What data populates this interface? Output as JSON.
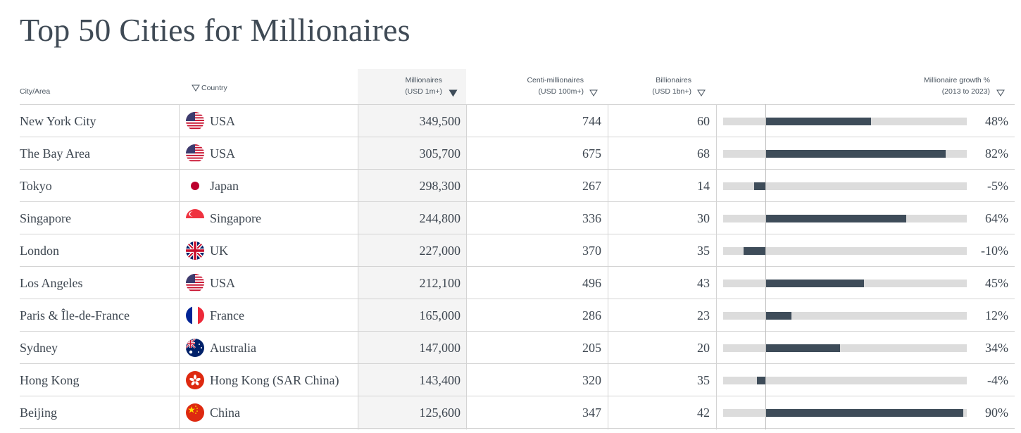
{
  "title": "Top 50 Cities for Millionaires",
  "headers": {
    "city": "City/Area",
    "country": "Country",
    "millionaires_1": "Millionaires",
    "millionaires_2": "(USD 1m+)",
    "centi_1": "Centi-millionaires",
    "centi_2": "(USD 100m+)",
    "billion_1": "Billionaires",
    "billion_2": "(USD 1bn+)",
    "growth_1": "Millionaire growth %",
    "growth_2": "(2013 to 2023)"
  },
  "colors": {
    "bar": "#3e4c59",
    "track": "#dcdcdc",
    "sorted_column_bg": "#f4f4f4"
  },
  "rows": [
    {
      "city": "New York City",
      "flag": "usa-flag-icon",
      "country": "USA",
      "millionaires": "349,500",
      "centi": "744",
      "billionaires": "60",
      "growth": 48,
      "growth_label": "48%"
    },
    {
      "city": "The Bay Area",
      "flag": "usa-flag-icon",
      "country": "USA",
      "millionaires": "305,700",
      "centi": "675",
      "billionaires": "68",
      "growth": 82,
      "growth_label": "82%"
    },
    {
      "city": "Tokyo",
      "flag": "japan-flag-icon",
      "country": "Japan",
      "millionaires": "298,300",
      "centi": "267",
      "billionaires": "14",
      "growth": -5,
      "growth_label": "-5%"
    },
    {
      "city": "Singapore",
      "flag": "singapore-flag-icon",
      "country": "Singapore",
      "millionaires": "244,800",
      "centi": "336",
      "billionaires": "30",
      "growth": 64,
      "growth_label": "64%"
    },
    {
      "city": "London",
      "flag": "uk-flag-icon",
      "country": "UK",
      "millionaires": "227,000",
      "centi": "370",
      "billionaires": "35",
      "growth": -10,
      "growth_label": "-10%"
    },
    {
      "city": "Los Angeles",
      "flag": "usa-flag-icon",
      "country": "USA",
      "millionaires": "212,100",
      "centi": "496",
      "billionaires": "43",
      "growth": 45,
      "growth_label": "45%"
    },
    {
      "city": "Paris & Île-de-France",
      "flag": "france-flag-icon",
      "country": "France",
      "millionaires": "165,000",
      "centi": "286",
      "billionaires": "23",
      "growth": 12,
      "growth_label": "12%"
    },
    {
      "city": "Sydney",
      "flag": "australia-flag-icon",
      "country": "Australia",
      "millionaires": "147,000",
      "centi": "205",
      "billionaires": "20",
      "growth": 34,
      "growth_label": "34%"
    },
    {
      "city": "Hong Kong",
      "flag": "hong-kong-flag-icon",
      "country": "Hong Kong (SAR China)",
      "millionaires": "143,400",
      "centi": "320",
      "billionaires": "35",
      "growth": -4,
      "growth_label": "-4%"
    },
    {
      "city": "Beijing",
      "flag": "china-flag-icon",
      "country": "China",
      "millionaires": "125,600",
      "centi": "347",
      "billionaires": "42",
      "growth": 90,
      "growth_label": "90%"
    }
  ]
}
